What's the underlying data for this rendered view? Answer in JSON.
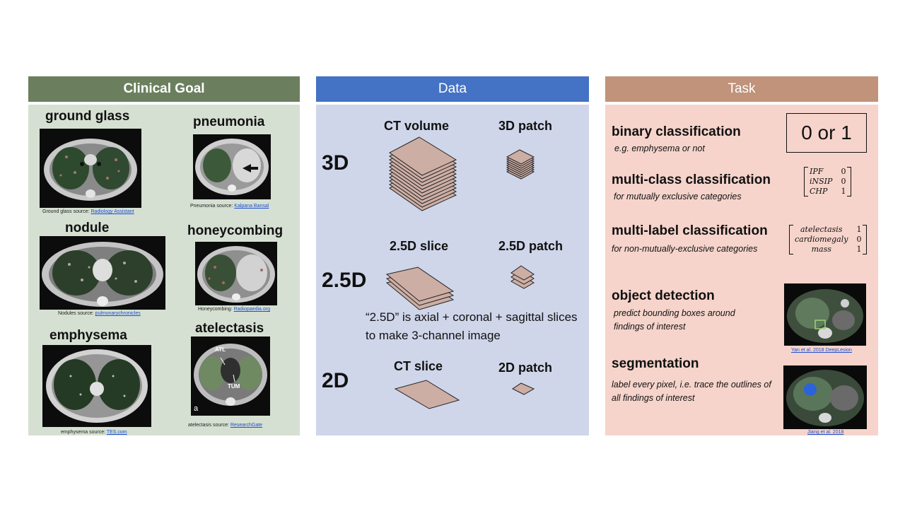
{
  "panels": {
    "clinical": {
      "header": "Clinical Goal"
    },
    "data": {
      "header": "Data"
    },
    "task": {
      "header": "Task"
    }
  },
  "clinical": {
    "ground_glass": {
      "title": "ground glass",
      "source_label": "Ground glass source:",
      "source_link": "Radiology Assistant"
    },
    "pneumonia": {
      "title": "pneumonia",
      "source_label": "Pneumonia source:",
      "source_link": "Kalpana Bansal"
    },
    "nodule": {
      "title": "nodule",
      "source_label": "Nodules source:",
      "source_link": "pulmonarychronicles"
    },
    "honeycombing": {
      "title": "honeycombing",
      "source_label": "Honeycombing:",
      "source_link": "Radiopaedia.org"
    },
    "emphysema": {
      "title": "emphysema",
      "source_label": "emphysema source:",
      "source_link": "TES.com"
    },
    "atelectasis": {
      "title": "atelectasis",
      "source_label": "atelectasis source:",
      "source_link": "ResearchGate",
      "img_labels": {
        "atl": "ATL",
        "tum": "TUM",
        "a": "a"
      }
    }
  },
  "data": {
    "rows": [
      {
        "dim": "3D",
        "col1": "CT volume",
        "col2": "3D patch"
      },
      {
        "dim": "2.5D",
        "col1": "2.5D slice",
        "col2": "2.5D patch"
      },
      {
        "dim": "2D",
        "col1": "CT slice",
        "col2": "2D patch"
      }
    ],
    "note": "“2.5D” is axial + coronal + sagittal slices to make 3-channel image"
  },
  "task": {
    "binary": {
      "title": "binary classification",
      "sub": "e.g. emphysema or not",
      "box": "0 or 1"
    },
    "multiclass": {
      "title": "multi-class classification",
      "sub": "for mutually exclusive categories",
      "matrix": [
        [
          "IPF",
          "0"
        ],
        [
          "iNSIP",
          "0"
        ],
        [
          "CHP",
          "1"
        ]
      ]
    },
    "multilabel": {
      "title": "multi-label classification",
      "sub": "for non-mutually-exclusive categories",
      "matrix": [
        [
          "atelectasis",
          "1"
        ],
        [
          "cardiomegaly",
          "0"
        ],
        [
          "mass",
          "1"
        ]
      ]
    },
    "detection": {
      "title": "object detection",
      "sub": "predict bounding boxes around findings of interest",
      "source_link": "Yan et al. 2018 DeepLesion"
    },
    "segmentation": {
      "title": "segmentation",
      "sub": "label every pixel, i.e. trace the outlines of all findings of interest",
      "source_link": "Jiang et al. 2018"
    }
  },
  "colors": {
    "clinical_header": "#6b7f5e",
    "clinical_bg": "#d6e0d2",
    "data_header": "#4472c4",
    "data_bg": "#cfd6ea",
    "task_header": "#c0937a",
    "task_bg": "#f6d4cb",
    "slice_fill": "#cdaea4",
    "link": "#1b4fd0"
  }
}
